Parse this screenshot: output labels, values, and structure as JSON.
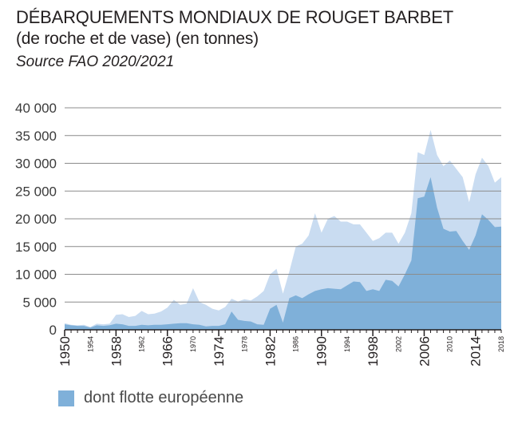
{
  "chart_data": {
    "type": "area",
    "title": "DÉBARQUEMENTS MONDIAUX DE ROUGET BARBET",
    "subtitle": "(de roche et de vase) (en tonnes)",
    "source": "Source FAO 2020/2021",
    "xlim": [
      1950,
      2018
    ],
    "ylim": [
      0,
      40000
    ],
    "y_ticks": [
      0,
      5000,
      10000,
      15000,
      20000,
      25000,
      30000,
      35000,
      40000
    ],
    "y_tick_labels": [
      "0",
      "5 000",
      "10 000",
      "15 000",
      "20 000",
      "25 000",
      "30 000",
      "35 000",
      "40 000"
    ],
    "x_major_ticks": [
      1950,
      1958,
      1966,
      1974,
      1982,
      1990,
      1998,
      2006,
      2014
    ],
    "x_minor_ticks": [
      1954,
      1962,
      1970,
      1978,
      1986,
      1994,
      2002,
      2010,
      2018
    ],
    "grid": "horizontal",
    "x": [
      1950,
      1951,
      1952,
      1953,
      1954,
      1955,
      1956,
      1957,
      1958,
      1959,
      1960,
      1961,
      1962,
      1963,
      1964,
      1965,
      1966,
      1967,
      1968,
      1969,
      1970,
      1971,
      1972,
      1973,
      1974,
      1975,
      1976,
      1977,
      1978,
      1979,
      1980,
      1981,
      1982,
      1983,
      1984,
      1985,
      1986,
      1987,
      1988,
      1989,
      1990,
      1991,
      1992,
      1993,
      1994,
      1995,
      1996,
      1997,
      1998,
      1999,
      2000,
      2001,
      2002,
      2003,
      2004,
      2005,
      2006,
      2007,
      2008,
      2009,
      2010,
      2011,
      2012,
      2013,
      2014,
      2015,
      2016,
      2017,
      2018
    ],
    "series": [
      {
        "name": "",
        "color": "#c9dcf1",
        "values": [
          1200,
          900,
          800,
          900,
          500,
          1100,
          1000,
          1100,
          2700,
          2800,
          2300,
          2500,
          3400,
          2800,
          2900,
          3300,
          4000,
          5400,
          4500,
          4700,
          7500,
          5000,
          4500,
          3800,
          3500,
          4100,
          5600,
          5100,
          5500,
          5300,
          6000,
          7000,
          10000,
          11000,
          6500,
          10500,
          15000,
          15500,
          17000,
          21000,
          17500,
          20000,
          20500,
          19500,
          19500,
          19000,
          19000,
          17500,
          16000,
          16500,
          17500,
          17500,
          15500,
          17500,
          21000,
          32000,
          31500,
          36000,
          31500,
          29500,
          30500,
          29000,
          27500,
          23000,
          28000,
          31000,
          29500,
          26500,
          27500
        ]
      },
      {
        "name": "dont flotte européenne",
        "color": "#7fb0d9",
        "values": [
          1000,
          800,
          700,
          700,
          400,
          800,
          700,
          800,
          1100,
          1000,
          700,
          700,
          900,
          800,
          900,
          900,
          1000,
          1100,
          1200,
          1200,
          1000,
          900,
          600,
          700,
          700,
          1000,
          3300,
          1800,
          1600,
          1500,
          1000,
          900,
          3800,
          4500,
          1300,
          5700,
          6200,
          5700,
          6400,
          7000,
          7300,
          7500,
          7400,
          7300,
          8000,
          8700,
          8600,
          7000,
          7300,
          7000,
          9000,
          8800,
          7800,
          10000,
          12500,
          23700,
          24000,
          27500,
          22000,
          18200,
          17700,
          17800,
          16000,
          14400,
          17000,
          20800,
          19800,
          18500,
          18600
        ]
      }
    ],
    "legend": {
      "position": "bottom-left",
      "label": "dont flotte européenne"
    }
  }
}
